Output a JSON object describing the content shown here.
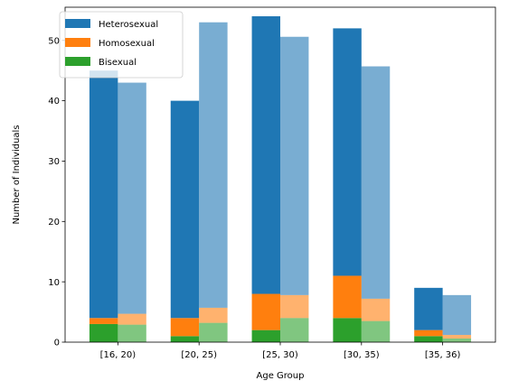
{
  "chart_data": {
    "type": "bar",
    "stacked": true,
    "grouped": true,
    "categories": [
      "[16, 20)",
      "[20, 25)",
      "[25, 30)",
      "[30, 35)",
      "[35, 36)"
    ],
    "xlabel": "Age Group",
    "ylabel": "Number of Individuals",
    "ylim": [
      0,
      55.5
    ],
    "yticks": [
      0,
      10,
      20,
      30,
      40,
      50
    ],
    "grid": false,
    "legend_position": "top-left",
    "stack_order": [
      "Bisexual",
      "Homosexual",
      "Heterosexual"
    ],
    "groups": [
      {
        "opacity": 1,
        "series": [
          {
            "name": "Heterosexual",
            "color": "#1f77b4",
            "values": [
              41,
              36,
              46,
              41,
              7
            ]
          },
          {
            "name": "Homosexual",
            "color": "#ff7f0e",
            "values": [
              1,
              3,
              6,
              7,
              1
            ]
          },
          {
            "name": "Bisexual",
            "color": "#2ca02c",
            "values": [
              3,
              1,
              2,
              4,
              1
            ]
          }
        ]
      },
      {
        "opacity": 0.6,
        "series": [
          {
            "name": "Heterosexual",
            "color": "#1f77b4",
            "values": [
              38.3,
              47.3,
              42.8,
              38.5,
              6.6
            ]
          },
          {
            "name": "Homosexual",
            "color": "#ff7f0e",
            "values": [
              1.8,
              2.5,
              3.8,
              3.7,
              0.6
            ]
          },
          {
            "name": "Bisexual",
            "color": "#2ca02c",
            "values": [
              2.9,
              3.2,
              4.0,
              3.5,
              0.6
            ]
          }
        ]
      }
    ],
    "legend": [
      {
        "name": "Heterosexual",
        "color": "#1f77b4"
      },
      {
        "name": "Homosexual",
        "color": "#ff7f0e"
      },
      {
        "name": "Bisexual",
        "color": "#2ca02c"
      }
    ]
  }
}
